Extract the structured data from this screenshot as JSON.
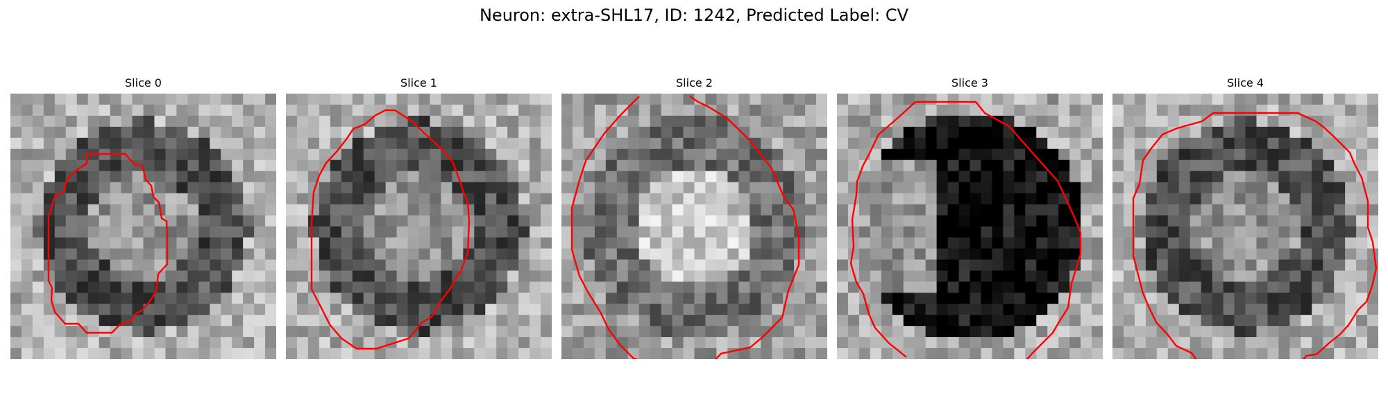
{
  "figure": {
    "title": "Neuron: extra-SHL17, ID: 1242, Predicted Label: CV"
  },
  "panels": [
    {
      "title": "Slice 0",
      "seed": 11,
      "style": "ring"
    },
    {
      "title": "Slice 1",
      "seed": 23,
      "style": "ring"
    },
    {
      "title": "Slice 2",
      "seed": 37,
      "style": "bright"
    },
    {
      "title": "Slice 3",
      "seed": 41,
      "style": "dark"
    },
    {
      "title": "Slice 4",
      "seed": 59,
      "style": "ring"
    }
  ],
  "contour_color": "#ff0000"
}
